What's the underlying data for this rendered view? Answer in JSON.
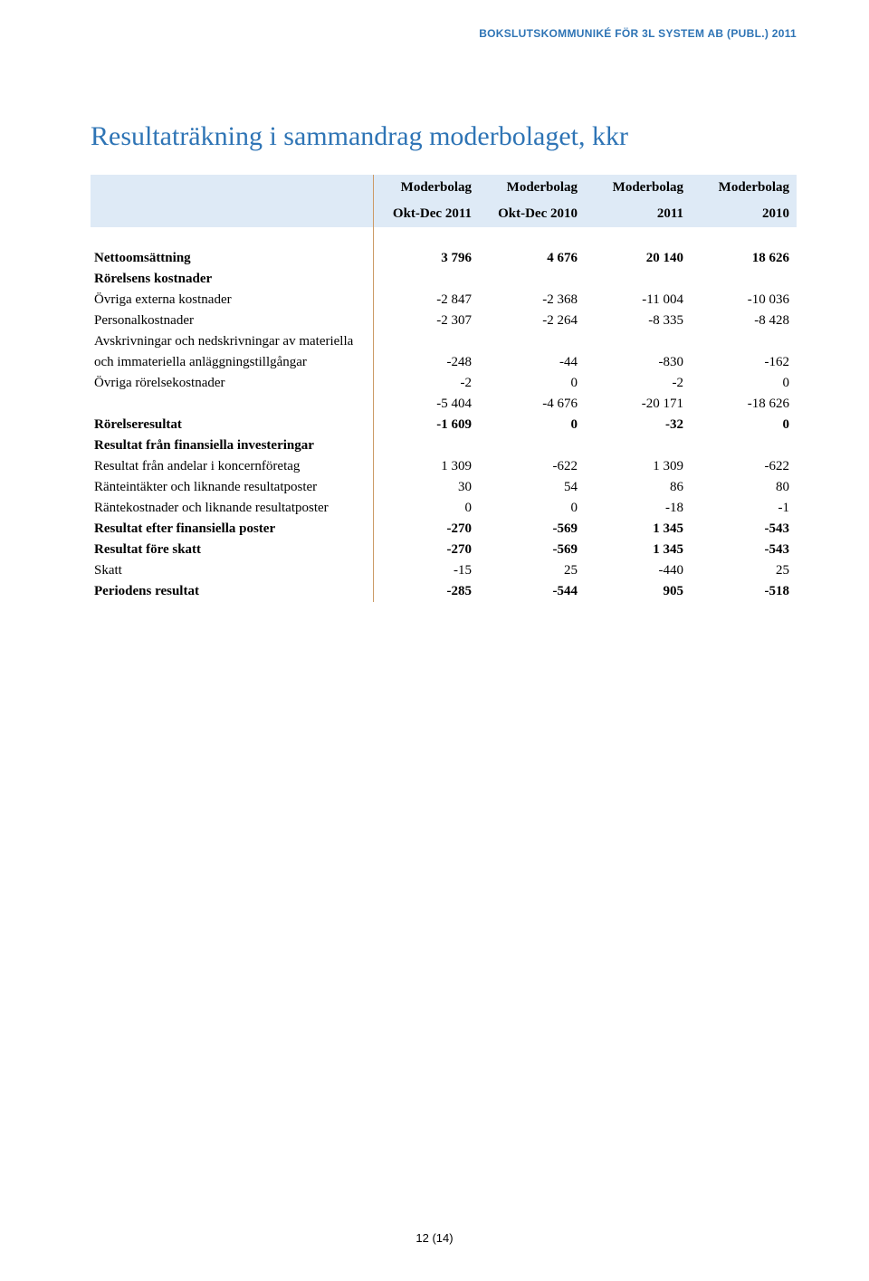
{
  "header_color": "#2e74b5",
  "title_color": "#2e74b5",
  "title_fontsize": 30,
  "header_shade": "#deeaf6",
  "separator_color": "#cc9a66",
  "header": "BOKSLUTSKOMMUNIKÉ FÖR 3L SYSTEM AB (PUBL.) 2011",
  "title": "Resultaträkning i sammandrag moderbolaget, kkr",
  "columns": {
    "c1_top": "Moderbolag",
    "c1_bot": "Okt-Dec 2011",
    "c2_top": "Moderbolag",
    "c2_bot": "Okt-Dec 2010",
    "c3_top": "Moderbolag",
    "c3_bot": "2011",
    "c4_top": "Moderbolag",
    "c4_bot": "2010"
  },
  "rows": {
    "nettooms": {
      "label": "Nettoomsättning",
      "v": [
        "3 796",
        "4 676",
        "20 140",
        "18 626"
      ]
    },
    "rorelsens_kostnader": {
      "label": "Rörelsens kostnader"
    },
    "ovriga_externa": {
      "label": "Övriga externa kostnader",
      "v": [
        "-2 847",
        "-2 368",
        "-11 004",
        "-10 036"
      ]
    },
    "personal": {
      "label": "Personalkostnader",
      "v": [
        "-2 307",
        "-2 264",
        "-8 335",
        "-8 428"
      ]
    },
    "avskr1": {
      "label": "Avskrivningar och nedskrivningar av materiella"
    },
    "avskr2": {
      "label": "och immateriella anläggningstillgångar",
      "v": [
        "-248",
        "-44",
        "-830",
        "-162"
      ]
    },
    "ovriga_rorelse": {
      "label": "Övriga rörelsekostnader",
      "v": [
        "-2",
        "0",
        "-2",
        "0"
      ]
    },
    "subtotal_kostn": {
      "label": "",
      "v": [
        "-5 404",
        "-4 676",
        "-20 171",
        "-18 626"
      ]
    },
    "rorelseresultat": {
      "label": "Rörelseresultat",
      "v": [
        "-1 609",
        "0",
        "-32",
        "0"
      ]
    },
    "res_fin_inv": {
      "label": "Resultat från finansiella investeringar"
    },
    "res_andelar": {
      "label": "Resultat från andelar i koncernföretag",
      "v": [
        "1 309",
        "-622",
        "1 309",
        "-622"
      ]
    },
    "ranteint": {
      "label": "Ränteintäkter och liknande resultatposter",
      "v": [
        "30",
        "54",
        "86",
        "80"
      ]
    },
    "rantekost": {
      "label": "Räntekostnader och liknande resultatposter",
      "v": [
        "0",
        "0",
        "-18",
        "-1"
      ]
    },
    "res_efter_fin": {
      "label": "Resultat efter finansiella poster",
      "v": [
        "-270",
        "-569",
        "1 345",
        "-543"
      ]
    },
    "res_fore_skatt": {
      "label": "Resultat före skatt",
      "v": [
        "-270",
        "-569",
        "1 345",
        "-543"
      ]
    },
    "skatt": {
      "label": "Skatt",
      "v": [
        "-15",
        "25",
        "-440",
        "25"
      ]
    },
    "periodens": {
      "label": "Periodens resultat",
      "v": [
        "-285",
        "-544",
        "905",
        "-518"
      ]
    }
  },
  "page_number": "12 (14)"
}
